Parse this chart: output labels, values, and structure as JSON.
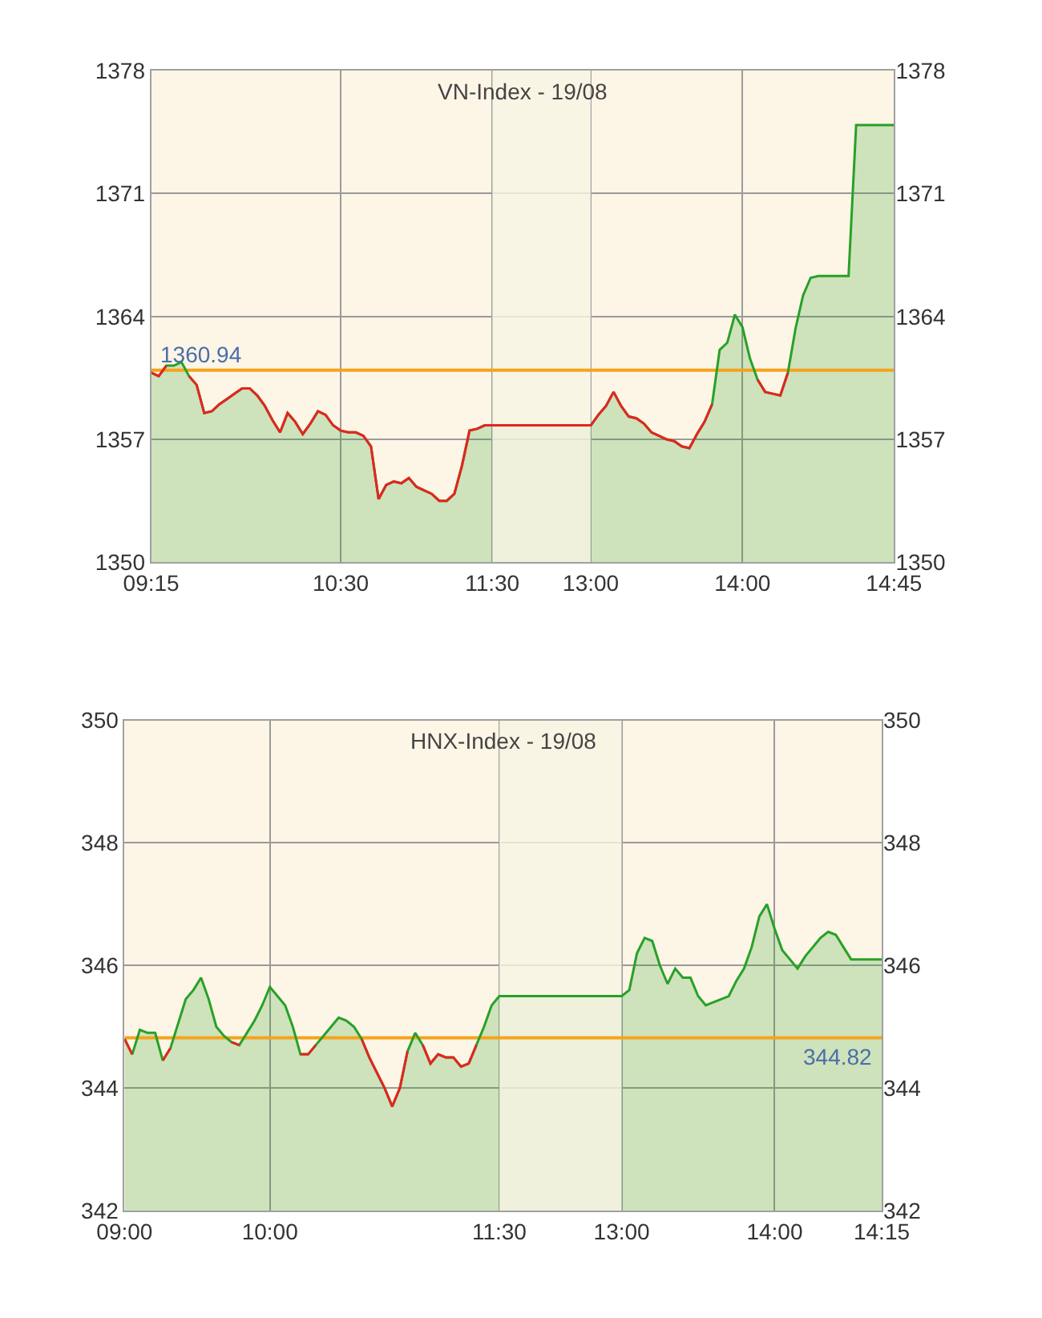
{
  "chart_data": [
    {
      "type": "area",
      "title": "VN-Index - 19/08",
      "categories": [
        "09:15",
        null,
        null,
        null,
        null,
        null,
        null,
        null,
        null,
        null,
        null,
        null,
        null,
        null,
        null,
        null,
        null,
        null,
        null,
        null,
        null,
        null,
        null,
        null,
        null,
        "10:30",
        null,
        null,
        null,
        null,
        null,
        null,
        null,
        null,
        null,
        null,
        null,
        null,
        null,
        null,
        null,
        null,
        null,
        null,
        null,
        "11:30",
        null,
        null,
        null,
        null,
        null,
        null,
        null,
        null,
        null,
        null,
        null,
        null,
        "13:00",
        null,
        null,
        null,
        null,
        null,
        null,
        null,
        null,
        null,
        null,
        null,
        null,
        null,
        null,
        null,
        null,
        null,
        null,
        null,
        "14:00",
        null,
        null,
        null,
        null,
        null,
        null,
        null,
        null,
        null,
        null,
        null,
        null,
        null,
        null,
        null,
        null,
        null,
        null,
        null,
        "14:45"
      ],
      "series": [
        {
          "color": "#27a127",
          "values": [
            1360.8,
            1360.6,
            1361.2,
            1361.2,
            1361.4,
            1360.6,
            1360.1,
            1358.5,
            1358.6,
            1359.0,
            1359.3,
            1359.6,
            1359.9,
            1359.9,
            1359.5,
            1358.9,
            1358.1,
            1357.4,
            1358.5,
            1358.0,
            1357.3,
            1357.9,
            1358.6,
            1358.4,
            1357.8,
            1357.5,
            1357.4,
            1357.4,
            1357.2,
            1356.6,
            1353.6,
            1354.4,
            1354.6,
            1354.5,
            1354.8,
            1354.3,
            1354.1,
            1353.9,
            1353.5,
            1353.5,
            1353.9,
            1355.5,
            1357.5,
            1357.6,
            1357.8,
            1357.8,
            1357.8,
            1357.8,
            1357.8,
            1357.8,
            1357.8,
            1357.8,
            1357.8,
            1357.8,
            1357.8,
            1357.8,
            1357.8,
            1357.8,
            1357.8,
            1358.4,
            1358.9,
            1359.7,
            1358.9,
            1358.3,
            1358.2,
            1357.9,
            1357.4,
            1357.2,
            1357.0,
            1356.9,
            1356.6,
            1356.5,
            1357.3,
            1358.0,
            1359.0,
            1362.1,
            1362.5,
            1364.1,
            1363.4,
            1361.6,
            1360.4,
            1359.7,
            1359.6,
            1359.5,
            1360.8,
            1363.3,
            1365.2,
            1366.2,
            1366.3,
            1366.3,
            1366.3,
            1366.3,
            1366.3,
            1374.9,
            1374.9,
            1374.9,
            1374.9,
            1374.9,
            1374.9
          ]
        },
        {
          "type": "line",
          "color": "#e52421",
          "values": [
            1360.8,
            1360.6,
            1361.2,
            null,
            null,
            1360.6,
            1360.1,
            1358.5,
            1358.6,
            1359.0,
            1359.3,
            1359.6,
            1359.9,
            1359.9,
            1359.5,
            1358.9,
            1358.1,
            1357.4,
            1358.5,
            1358.0,
            1357.3,
            1357.9,
            1358.6,
            1358.4,
            1357.8,
            1357.5,
            1357.4,
            1357.4,
            1357.2,
            1356.6,
            1353.6,
            1354.4,
            1354.6,
            1354.5,
            1354.8,
            1354.3,
            1354.1,
            1353.9,
            1353.5,
            1353.5,
            1353.9,
            1355.5,
            1357.5,
            1357.6,
            1357.8,
            1357.8,
            1357.8,
            1357.8,
            1357.8,
            1357.8,
            1357.8,
            1357.8,
            1357.8,
            1357.8,
            1357.8,
            1357.8,
            1357.8,
            1357.8,
            1357.8,
            1358.4,
            1358.9,
            1359.7,
            1358.9,
            1358.3,
            1358.2,
            1357.9,
            1357.4,
            1357.2,
            1357.0,
            1356.9,
            1356.6,
            1356.5,
            1357.3,
            1358.0,
            1359.0,
            null,
            null,
            null,
            null,
            null,
            1360.4,
            1359.7,
            1359.6,
            1359.5,
            1360.8,
            null,
            null,
            null,
            null,
            null,
            null,
            null,
            null,
            null,
            null,
            null,
            null,
            null,
            null
          ]
        }
      ],
      "ylim": [
        1350,
        1378
      ],
      "yticks": [
        1350,
        1357,
        1364,
        1371,
        1378
      ],
      "y2lim": [
        1350,
        1378
      ],
      "y2ticks": [
        1350,
        1357,
        1364,
        1371,
        1378
      ],
      "grid": true,
      "ref_lines": [
        {
          "axis": "y",
          "value": 1360.94,
          "color": "#f5a31c"
        }
      ],
      "bands": [
        {
          "axis": "x",
          "from": "11:30",
          "to": "13:00",
          "color": "#f8f5e4"
        }
      ],
      "annotations": [
        {
          "text": "1360.94",
          "x": "09:15",
          "y": 1360.94
        }
      ]
    },
    {
      "type": "area",
      "title": "HNX-Index - 19/08",
      "categories": [
        "09:00",
        null,
        null,
        null,
        null,
        null,
        null,
        null,
        null,
        null,
        null,
        null,
        null,
        null,
        null,
        null,
        null,
        null,
        null,
        "10:00",
        null,
        null,
        null,
        null,
        null,
        null,
        null,
        null,
        null,
        null,
        null,
        null,
        null,
        null,
        null,
        null,
        null,
        null,
        null,
        null,
        null,
        null,
        null,
        null,
        null,
        null,
        null,
        null,
        null,
        "11:30",
        null,
        null,
        null,
        null,
        null,
        null,
        null,
        null,
        null,
        null,
        null,
        null,
        null,
        null,
        null,
        "13:00",
        null,
        null,
        null,
        null,
        null,
        null,
        null,
        null,
        null,
        null,
        null,
        null,
        null,
        null,
        null,
        null,
        null,
        null,
        null,
        "14:00",
        null,
        null,
        null,
        null,
        null,
        null,
        null,
        null,
        null,
        null,
        null,
        null,
        null,
        "14:15"
      ],
      "series": [
        {
          "color": "#27a127",
          "values": [
            344.8,
            344.55,
            344.95,
            344.9,
            344.9,
            344.45,
            344.65,
            345.05,
            345.45,
            345.6,
            345.8,
            345.45,
            345.0,
            344.85,
            344.75,
            344.7,
            344.9,
            345.1,
            345.35,
            345.65,
            345.5,
            345.35,
            345.0,
            344.55,
            344.55,
            344.7,
            344.85,
            345.0,
            345.15,
            345.1,
            345.0,
            344.8,
            344.5,
            344.25,
            344.0,
            343.7,
            344.0,
            344.6,
            344.9,
            344.7,
            344.4,
            344.55,
            344.5,
            344.5,
            344.35,
            344.4,
            344.7,
            345.0,
            345.35,
            345.5,
            345.5,
            345.5,
            345.5,
            345.5,
            345.5,
            345.5,
            345.5,
            345.5,
            345.5,
            345.5,
            345.5,
            345.5,
            345.5,
            345.5,
            345.5,
            345.5,
            345.6,
            346.2,
            346.45,
            346.4,
            346.0,
            345.7,
            345.95,
            345.8,
            345.8,
            345.5,
            345.35,
            345.4,
            345.45,
            345.5,
            345.75,
            345.95,
            346.3,
            346.8,
            347.0,
            346.6,
            346.25,
            346.1,
            345.95,
            346.15,
            346.3,
            346.45,
            346.55,
            346.5,
            346.3,
            346.1,
            346.1,
            346.1,
            346.1,
            346.1
          ]
        },
        {
          "type": "line",
          "color": "#e52421",
          "values": [
            344.8,
            344.55,
            null,
            null,
            null,
            344.45,
            344.65,
            null,
            null,
            null,
            null,
            null,
            null,
            null,
            344.75,
            344.7,
            null,
            null,
            null,
            null,
            null,
            null,
            null,
            344.55,
            344.55,
            344.7,
            null,
            null,
            null,
            null,
            null,
            344.8,
            344.5,
            344.25,
            344.0,
            343.7,
            344.0,
            344.6,
            null,
            344.7,
            344.4,
            344.55,
            344.5,
            344.5,
            344.35,
            344.4,
            344.7,
            null,
            null,
            null,
            null,
            null,
            null,
            null,
            null,
            null,
            null,
            null,
            null,
            null,
            null,
            null,
            null,
            null,
            null,
            null,
            null,
            null,
            null,
            null,
            null,
            null,
            null,
            null,
            null,
            null,
            null,
            null,
            null,
            null,
            null,
            null,
            null,
            null,
            null,
            null,
            null,
            null,
            null,
            null,
            null,
            null,
            null,
            null,
            null,
            null,
            null,
            null,
            null,
            null
          ]
        }
      ],
      "ylim": [
        342,
        350
      ],
      "yticks": [
        342,
        344,
        346,
        348,
        350
      ],
      "y2lim": [
        342,
        350
      ],
      "y2ticks": [
        342,
        344,
        346,
        348,
        350
      ],
      "grid": true,
      "ref_lines": [
        {
          "axis": "y",
          "value": 344.82,
          "color": "#f5a31c"
        }
      ],
      "bands": [
        {
          "axis": "x",
          "from": "11:30",
          "to": "13:00",
          "color": "#f8f5e4"
        }
      ],
      "annotations": [
        {
          "text": "344.82",
          "x": "14:15",
          "y": 344.82
        }
      ]
    }
  ]
}
